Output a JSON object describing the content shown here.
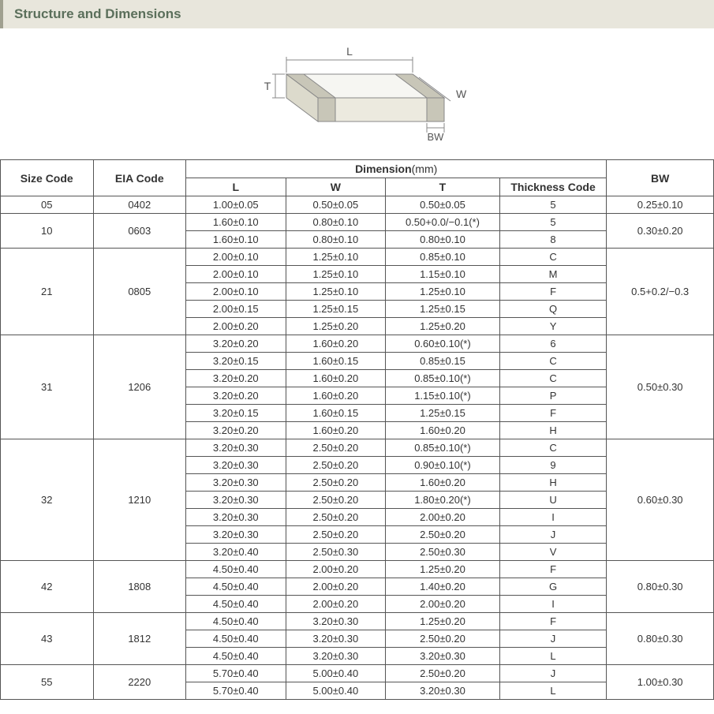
{
  "title": "Structure and Dimensions",
  "diagram": {
    "labels": {
      "L": "L",
      "W": "W",
      "T": "T",
      "BW": "BW"
    },
    "stroke": "#888888",
    "fill_top": "#f6f6f2",
    "fill_front": "#eceadf",
    "fill_side": "#dcdacc",
    "band_fill": "#c8c6b8"
  },
  "headers": {
    "size": "Size Code",
    "eia": "EIA Code",
    "dim": "Dimension",
    "dim_unit": "(mm)",
    "L": "L",
    "W": "W",
    "T": "T",
    "thick": "Thickness  Code",
    "BW": "BW"
  },
  "groups": [
    {
      "size": "05",
      "eia": "0402",
      "bw": "0.25±0.10",
      "rows": [
        {
          "L": "1.00±0.05",
          "W": "0.50±0.05",
          "T": "0.50±0.05",
          "th": "5"
        }
      ]
    },
    {
      "size": "10",
      "eia": "0603",
      "bw": "0.30±0.20",
      "rows": [
        {
          "L": "1.60±0.10",
          "W": "0.80±0.10",
          "T": "0.50+0.0/−0.1(*)",
          "th": "5"
        },
        {
          "L": "1.60±0.10",
          "W": "0.80±0.10",
          "T": "0.80±0.10",
          "th": "8"
        }
      ]
    },
    {
      "size": "21",
      "eia": "0805",
      "bw": "0.5+0.2/−0.3",
      "rows": [
        {
          "L": "2.00±0.10",
          "W": "1.25±0.10",
          "T": "0.85±0.10",
          "th": "C"
        },
        {
          "L": "2.00±0.10",
          "W": "1.25±0.10",
          "T": "1.15±0.10",
          "th": "M"
        },
        {
          "L": "2.00±0.10",
          "W": "1.25±0.10",
          "T": "1.25±0.10",
          "th": "F"
        },
        {
          "L": "2.00±0.15",
          "W": "1.25±0.15",
          "T": "1.25±0.15",
          "th": "Q"
        },
        {
          "L": "2.00±0.20",
          "W": "1.25±0.20",
          "T": "1.25±0.20",
          "th": "Y"
        }
      ]
    },
    {
      "size": "31",
      "eia": "1206",
      "bw": "0.50±0.30",
      "rows": [
        {
          "L": "3.20±0.20",
          "W": "1.60±0.20",
          "T": "0.60±0.10(*)",
          "th": "6"
        },
        {
          "L": "3.20±0.15",
          "W": "1.60±0.15",
          "T": "0.85±0.15",
          "th": "C"
        },
        {
          "L": "3.20±0.20",
          "W": "1.60±0.20",
          "T": "0.85±0.10(*)",
          "th": "C"
        },
        {
          "L": "3.20±0.20",
          "W": "1.60±0.20",
          "T": "1.15±0.10(*)",
          "th": "P"
        },
        {
          "L": "3.20±0.15",
          "W": "1.60±0.15",
          "T": "1.25±0.15",
          "th": "F"
        },
        {
          "L": "3.20±0.20",
          "W": "1.60±0.20",
          "T": "1.60±0.20",
          "th": "H"
        }
      ]
    },
    {
      "size": "32",
      "eia": "1210",
      "bw": "0.60±0.30",
      "rows": [
        {
          "L": "3.20±0.30",
          "W": "2.50±0.20",
          "T": "0.85±0.10(*)",
          "th": "C"
        },
        {
          "L": "3.20±0.30",
          "W": "2.50±0.20",
          "T": "0.90±0.10(*)",
          "th": "9"
        },
        {
          "L": "3.20±0.30",
          "W": "2.50±0.20",
          "T": "1.60±0.20",
          "th": "H"
        },
        {
          "L": "3.20±0.30",
          "W": "2.50±0.20",
          "T": "1.80±0.20(*)",
          "th": "U"
        },
        {
          "L": "3.20±0.30",
          "W": "2.50±0.20",
          "T": "2.00±0.20",
          "th": "I"
        },
        {
          "L": "3.20±0.30",
          "W": "2.50±0.20",
          "T": "2.50±0.20",
          "th": "J"
        },
        {
          "L": "3.20±0.40",
          "W": "2.50±0.30",
          "T": "2.50±0.30",
          "th": "V"
        }
      ]
    },
    {
      "size": "42",
      "eia": "1808",
      "bw": "0.80±0.30",
      "rows": [
        {
          "L": "4.50±0.40",
          "W": "2.00±0.20",
          "T": "1.25±0.20",
          "th": "F"
        },
        {
          "L": "4.50±0.40",
          "W": "2.00±0.20",
          "T": "1.40±0.20",
          "th": "G"
        },
        {
          "L": "4.50±0.40",
          "W": "2.00±0.20",
          "T": "2.00±0.20",
          "th": "I"
        }
      ]
    },
    {
      "size": "43",
      "eia": "1812",
      "bw": "0.80±0.30",
      "rows": [
        {
          "L": "4.50±0.40",
          "W": "3.20±0.30",
          "T": "1.25±0.20",
          "th": "F"
        },
        {
          "L": "4.50±0.40",
          "W": "3.20±0.30",
          "T": "2.50±0.20",
          "th": "J"
        },
        {
          "L": "4.50±0.40",
          "W": "3.20±0.30",
          "T": "3.20±0.30",
          "th": "L"
        }
      ]
    },
    {
      "size": "55",
      "eia": "2220",
      "bw": "1.00±0.30",
      "rows": [
        {
          "L": "5.70±0.40",
          "W": "5.00±0.40",
          "T": "2.50±0.20",
          "th": "J"
        },
        {
          "L": "5.70±0.40",
          "W": "5.00±0.40",
          "T": "3.20±0.30",
          "th": "L"
        }
      ]
    }
  ],
  "colors": {
    "title_bg": "#e8e6dc",
    "title_accent": "#a0a090",
    "title_text": "#5b6f5b",
    "border": "#555555",
    "text": "#333333"
  },
  "font": {
    "family": "Arial",
    "cell_size": 13,
    "header_size": 14,
    "title_size": 17
  }
}
